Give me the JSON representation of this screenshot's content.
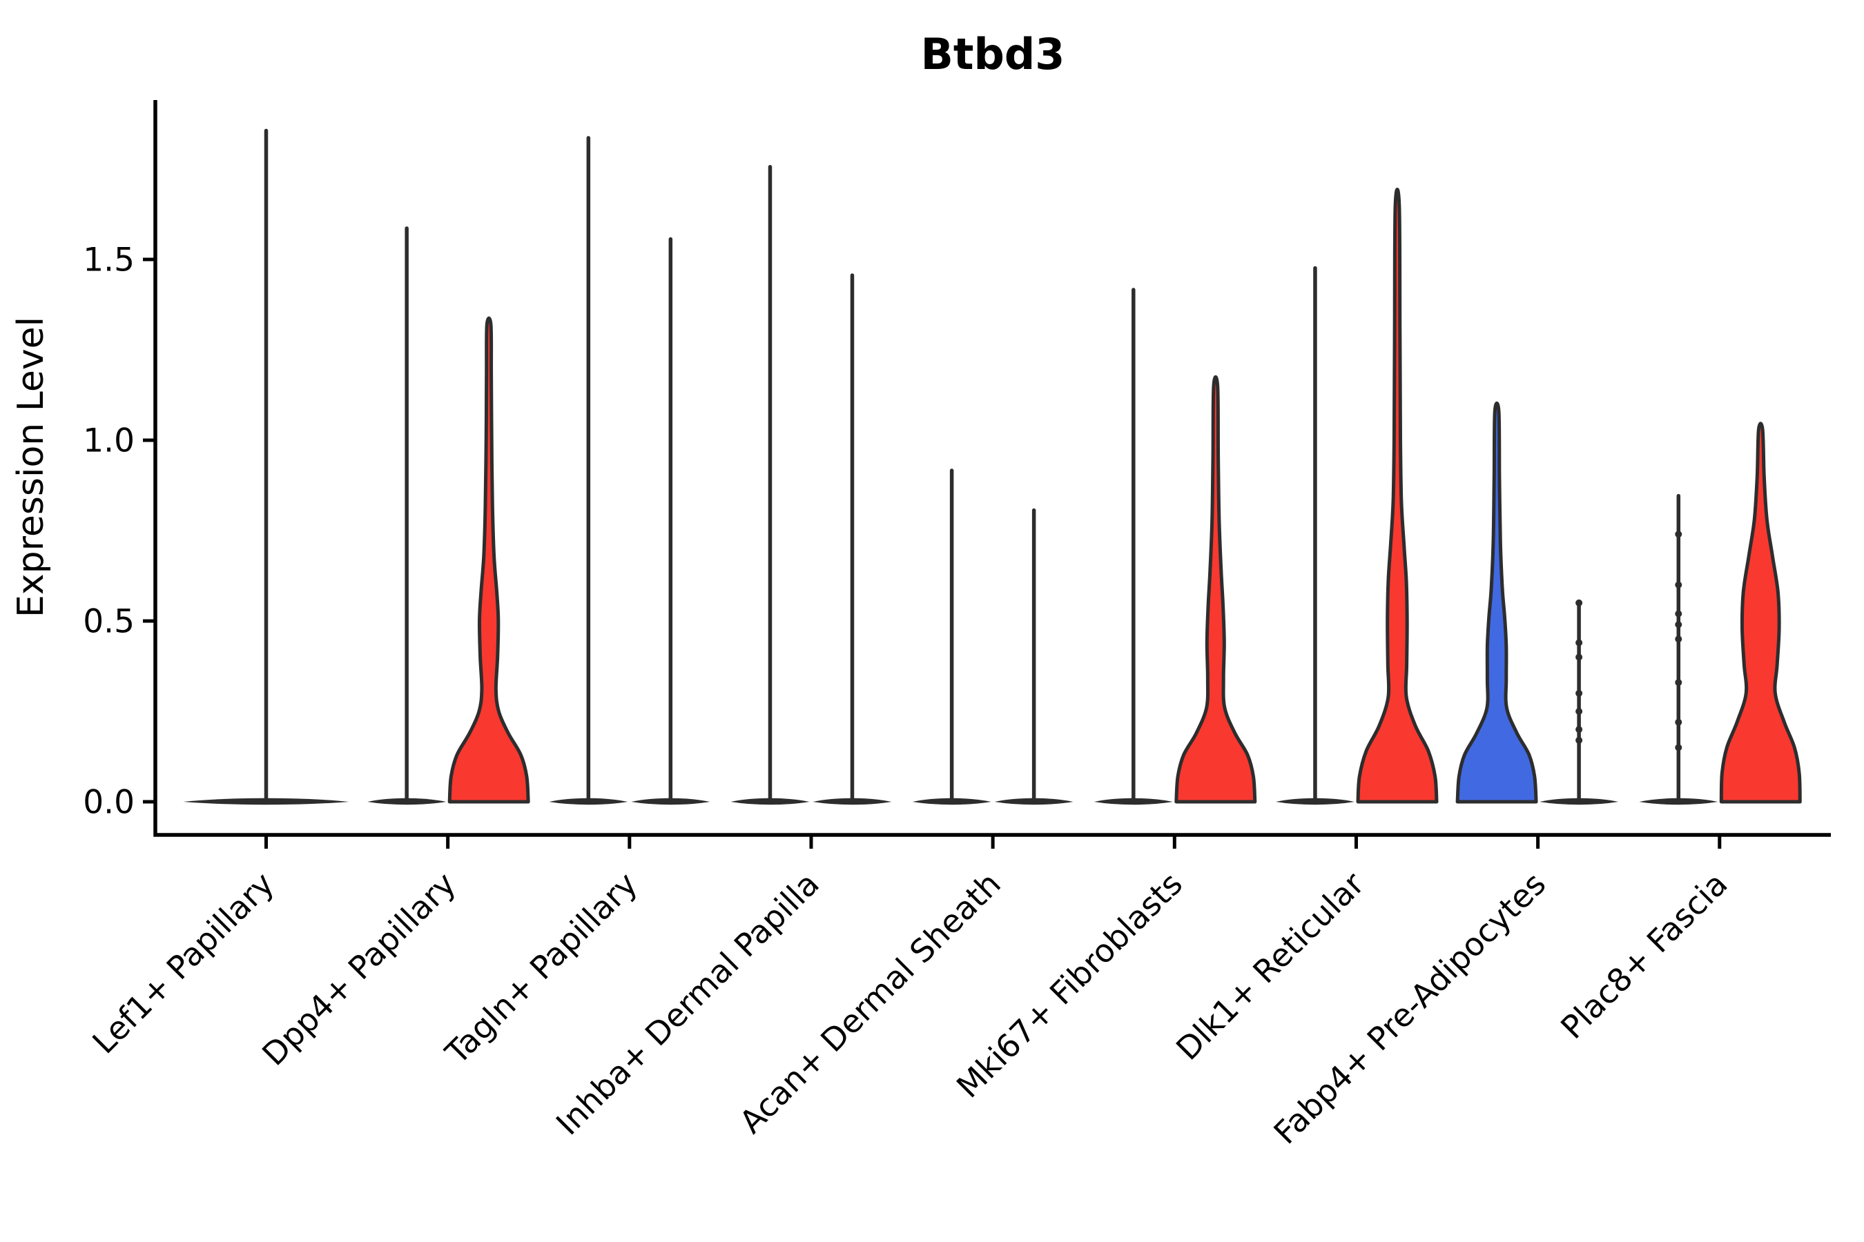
{
  "title": "Btbd3",
  "y_axis": {
    "label": "Expression Level",
    "tick_labels": [
      "0.0",
      "0.5",
      "1.0",
      "1.5"
    ],
    "tick_values": [
      0.0,
      0.5,
      1.0,
      1.5
    ]
  },
  "x_axis": {
    "categories": [
      "Lef1+ Papillary",
      "Dpp4+ Papillary",
      "Tagln+ Papillary",
      "Inhba+ Dermal Papilla",
      "Acan+ Dermal Sheath",
      "Mki67+ Fibroblasts",
      "Dlk1+ Reticular",
      "Fabp4+ Pre-Adipocytes",
      "Plac8+ Fascia"
    ],
    "label_rotation_deg": 45
  },
  "colors": {
    "red": "#F93830",
    "blue": "#4169E1",
    "outline": "#2D2D2D",
    "axis": "#000000"
  },
  "chart_data": {
    "type": "violin",
    "title": "Btbd3",
    "xlabel": "",
    "ylabel": "Expression Level",
    "ylim": [
      0,
      1.94
    ],
    "grid": false,
    "legend": null,
    "categories": [
      "Lef1+ Papillary",
      "Dpp4+ Papillary",
      "Tagln+ Papillary",
      "Inhba+ Dermal Papilla",
      "Acan+ Dermal Sheath",
      "Mki67+ Fibroblasts",
      "Dlk1+ Reticular",
      "Fabp4+ Pre-Adipocytes",
      "Plac8+ Fascia"
    ],
    "description": "Split violin plot of Btbd3 expression; most violins collapse to a flat bar at 0 with a thin spike to the max expressed cell; five violins show a visible density body (red or blue fill); two thin violins carry jittered cell dots.",
    "violins": [
      {
        "category_index": 0,
        "category": "Lef1+ Papillary",
        "side": "single",
        "max": 1.86,
        "fill": null,
        "dots": []
      },
      {
        "category_index": 1,
        "category": "Dpp4+ Papillary",
        "side": "left",
        "max": 1.59,
        "fill": null,
        "dots": []
      },
      {
        "category_index": 1,
        "category": "Dpp4+ Papillary",
        "side": "right",
        "max": 1.32,
        "fill": "red",
        "dots": [],
        "profile": [
          [
            0,
            1.0
          ],
          [
            0.07,
            0.96
          ],
          [
            0.13,
            0.81
          ],
          [
            0.19,
            0.49
          ],
          [
            0.25,
            0.25
          ],
          [
            0.31,
            0.18
          ],
          [
            0.4,
            0.22
          ],
          [
            0.5,
            0.24
          ],
          [
            0.58,
            0.2
          ],
          [
            0.68,
            0.13
          ],
          [
            0.82,
            0.09
          ],
          [
            1.0,
            0.07
          ],
          [
            1.18,
            0.06
          ],
          [
            1.32,
            0.05
          ]
        ]
      },
      {
        "category_index": 2,
        "category": "Tagln+ Papillary",
        "side": "left",
        "max": 1.84,
        "fill": null,
        "dots": []
      },
      {
        "category_index": 2,
        "category": "Tagln+ Papillary",
        "side": "right",
        "max": 1.56,
        "fill": null,
        "dots": []
      },
      {
        "category_index": 3,
        "category": "Inhba+ Dermal Papilla",
        "side": "left",
        "max": 1.76,
        "fill": null,
        "dots": []
      },
      {
        "category_index": 3,
        "category": "Inhba+ Dermal Papilla",
        "side": "right",
        "max": 1.46,
        "fill": null,
        "dots": []
      },
      {
        "category_index": 4,
        "category": "Acan+ Dermal Sheath",
        "side": "left",
        "max": 0.92,
        "fill": null,
        "dots": []
      },
      {
        "category_index": 4,
        "category": "Acan+ Dermal Sheath",
        "side": "right",
        "max": 0.81,
        "fill": null,
        "dots": []
      },
      {
        "category_index": 5,
        "category": "Mki67+ Fibroblasts",
        "side": "left",
        "max": 1.42,
        "fill": null,
        "dots": []
      },
      {
        "category_index": 5,
        "category": "Mki67+ Fibroblasts",
        "side": "right",
        "max": 1.15,
        "fill": "red",
        "dots": [],
        "profile": [
          [
            0,
            1.0
          ],
          [
            0.07,
            0.96
          ],
          [
            0.13,
            0.81
          ],
          [
            0.19,
            0.49
          ],
          [
            0.26,
            0.23
          ],
          [
            0.34,
            0.2
          ],
          [
            0.44,
            0.22
          ],
          [
            0.54,
            0.19
          ],
          [
            0.64,
            0.14
          ],
          [
            0.78,
            0.09
          ],
          [
            0.95,
            0.067
          ],
          [
            1.15,
            0.05
          ]
        ]
      },
      {
        "category_index": 6,
        "category": "Dlk1+ Reticular",
        "side": "left",
        "max": 1.48,
        "fill": null,
        "dots": []
      },
      {
        "category_index": 6,
        "category": "Dlk1+ Reticular",
        "side": "right",
        "max": 1.65,
        "fill": "red",
        "dots": [],
        "profile": [
          [
            0,
            1.0
          ],
          [
            0.07,
            0.96
          ],
          [
            0.14,
            0.79
          ],
          [
            0.21,
            0.46
          ],
          [
            0.29,
            0.23
          ],
          [
            0.38,
            0.24
          ],
          [
            0.5,
            0.25
          ],
          [
            0.61,
            0.23
          ],
          [
            0.71,
            0.17
          ],
          [
            0.83,
            0.105
          ],
          [
            1.0,
            0.08
          ],
          [
            1.3,
            0.067
          ],
          [
            1.65,
            0.05
          ]
        ]
      },
      {
        "category_index": 7,
        "category": "Fabp4+ Pre-Adipocytes",
        "side": "left",
        "max": 1.08,
        "fill": "blue",
        "dots": [],
        "profile": [
          [
            0,
            1.0
          ],
          [
            0.07,
            0.96
          ],
          [
            0.13,
            0.82
          ],
          [
            0.19,
            0.51
          ],
          [
            0.26,
            0.25
          ],
          [
            0.34,
            0.24
          ],
          [
            0.43,
            0.24
          ],
          [
            0.51,
            0.2
          ],
          [
            0.59,
            0.14
          ],
          [
            0.72,
            0.09
          ],
          [
            0.9,
            0.067
          ],
          [
            1.08,
            0.05
          ]
        ]
      },
      {
        "category_index": 7,
        "category": "Fabp4+ Pre-Adipocytes",
        "side": "right",
        "max": 0.55,
        "fill": null,
        "dots": [
          0.17,
          0.2,
          0.25,
          0.3,
          0.4,
          0.44,
          0.55
        ]
      },
      {
        "category_index": 8,
        "category": "Plac8+ Fascia",
        "side": "left",
        "max": 0.85,
        "fill": null,
        "dots": [
          0.15,
          0.22,
          0.33,
          0.45,
          0.49,
          0.52,
          0.6,
          0.74
        ]
      },
      {
        "category_index": 8,
        "category": "Plac8+ Fascia",
        "side": "right",
        "max": 1.03,
        "fill": "red",
        "dots": [],
        "profile": [
          [
            0,
            1.0
          ],
          [
            0.08,
            0.98
          ],
          [
            0.15,
            0.86
          ],
          [
            0.22,
            0.6
          ],
          [
            0.3,
            0.37
          ],
          [
            0.38,
            0.42
          ],
          [
            0.48,
            0.47
          ],
          [
            0.58,
            0.44
          ],
          [
            0.68,
            0.3
          ],
          [
            0.78,
            0.16
          ],
          [
            0.9,
            0.088
          ],
          [
            1.03,
            0.05
          ]
        ]
      }
    ]
  }
}
